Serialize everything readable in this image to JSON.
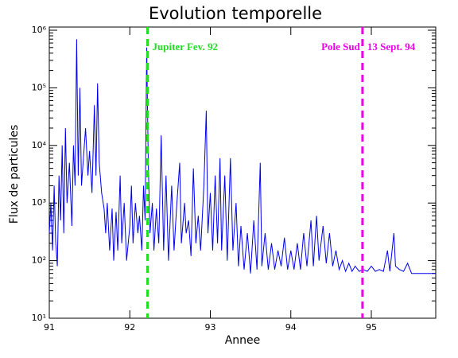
{
  "chart_data": {
    "type": "line",
    "title": "Evolution temporelle",
    "x_label": "Annee",
    "y_label": "Flux de particules",
    "log_y": true,
    "xlim": [
      91,
      95.8
    ],
    "ylim": [
      10,
      1000000
    ],
    "xticks": [
      91,
      92,
      93,
      94,
      95
    ],
    "yticks": [
      {
        "value": 10,
        "label": "10¹"
      },
      {
        "value": 100,
        "label": "10²"
      },
      {
        "value": 1000,
        "label": "10³"
      },
      {
        "value": 10000,
        "label": "10⁴"
      },
      {
        "value": 100000,
        "label": "10⁵"
      },
      {
        "value": 1000000,
        "label": "10⁶"
      }
    ],
    "markers": [
      {
        "x": 92.22,
        "color": "#22dd22",
        "label": "Jupiter Fev. 92"
      },
      {
        "x": 94.89,
        "color": "#ee00ee",
        "label_left": "Pole Sud",
        "label": "13 Sept. 94"
      }
    ],
    "x": [
      91.0,
      91.02,
      91.04,
      91.06,
      91.08,
      91.1,
      91.12,
      91.14,
      91.16,
      91.18,
      91.2,
      91.22,
      91.25,
      91.28,
      91.3,
      91.32,
      91.34,
      91.36,
      91.38,
      91.4,
      91.42,
      91.45,
      91.48,
      91.5,
      91.53,
      91.56,
      91.58,
      91.6,
      91.62,
      91.65,
      91.68,
      91.7,
      91.72,
      91.75,
      91.78,
      91.8,
      91.83,
      91.85,
      91.88,
      91.9,
      91.93,
      91.96,
      92.0,
      92.02,
      92.04,
      92.07,
      92.1,
      92.12,
      92.15,
      92.17,
      92.19,
      92.21,
      92.23,
      92.25,
      92.28,
      92.3,
      92.33,
      92.36,
      92.39,
      92.42,
      92.45,
      92.48,
      92.52,
      92.55,
      92.58,
      92.62,
      92.64,
      92.68,
      92.7,
      92.73,
      92.76,
      92.79,
      92.82,
      92.85,
      92.88,
      92.92,
      92.95,
      92.97,
      93.0,
      93.03,
      93.06,
      93.09,
      93.12,
      93.14,
      93.18,
      93.21,
      93.25,
      93.28,
      93.32,
      93.35,
      93.38,
      93.42,
      93.46,
      93.5,
      93.54,
      93.58,
      93.62,
      93.64,
      93.68,
      93.72,
      93.76,
      93.8,
      93.84,
      93.88,
      93.92,
      93.96,
      94.0,
      94.04,
      94.08,
      94.12,
      94.16,
      94.2,
      94.25,
      94.28,
      94.32,
      94.35,
      94.4,
      94.44,
      94.48,
      94.52,
      94.56,
      94.6,
      94.64,
      94.68,
      94.72,
      94.76,
      94.8,
      94.85,
      94.9,
      94.95,
      95.0,
      95.05,
      95.1,
      95.15,
      95.2,
      95.23,
      95.28,
      95.3,
      95.35,
      95.4,
      95.45,
      95.5,
      95.6,
      95.7,
      95.8
    ],
    "series": [
      {
        "color": "#0000ee",
        "values": [
          300,
          1000,
          150,
          2000,
          200,
          80,
          3000,
          500,
          10000,
          300,
          20000,
          1000,
          5000,
          400,
          10000,
          2000,
          700000,
          3000,
          100000,
          2000,
          5000,
          20000,
          3000,
          8000,
          1500,
          50000,
          3000,
          120000,
          5000,
          1500,
          800,
          300,
          1000,
          150,
          800,
          100,
          700,
          150,
          3000,
          200,
          1000,
          100,
          400,
          2000,
          200,
          1000,
          300,
          600,
          150,
          2000,
          500,
          500000,
          5000,
          300,
          1000,
          150,
          800,
          200,
          15000,
          150,
          3000,
          100,
          2000,
          150,
          800,
          5000,
          200,
          1000,
          300,
          500,
          120,
          4000,
          200,
          600,
          150,
          2000,
          40000,
          300,
          1500,
          150,
          3000,
          200,
          6000,
          150,
          3000,
          100,
          6000,
          150,
          1000,
          80,
          400,
          70,
          300,
          60,
          500,
          70,
          5000,
          80,
          300,
          70,
          200,
          70,
          150,
          80,
          250,
          70,
          150,
          70,
          200,
          70,
          300,
          80,
          500,
          80,
          600,
          100,
          400,
          90,
          300,
          80,
          150,
          70,
          100,
          65,
          90,
          65,
          80,
          65,
          70,
          65,
          80,
          65,
          70,
          65,
          150,
          65,
          300,
          80,
          70,
          65,
          90,
          60,
          60,
          60,
          60
        ]
      }
    ]
  }
}
